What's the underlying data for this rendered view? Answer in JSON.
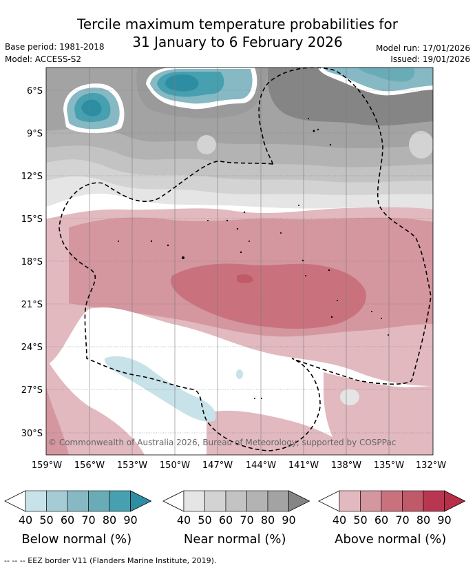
{
  "title_line1": "Tercile maximum temperature probabilities for",
  "title_line2": "31 January to 6 February 2026",
  "base_period": "Base period: 1981-2018",
  "model": "Model: ACCESS-S2",
  "model_run": "Model run: 17/01/2026",
  "issued": "Issued: 19/01/2026",
  "lat_labels": [
    "6°S",
    "9°S",
    "12°S",
    "15°S",
    "18°S",
    "21°S",
    "24°S",
    "27°S",
    "30°S"
  ],
  "lon_labels": [
    "159°W",
    "156°W",
    "153°W",
    "150°W",
    "147°W",
    "144°W",
    "141°W",
    "138°W",
    "135°W",
    "132°W"
  ],
  "copyright": "© Commonwealth of Australia 2026, Bureau of Meteorology, supported by COSPPac",
  "colorbars": [
    {
      "title": "Below normal (%)",
      "ticks": [
        "40",
        "50",
        "60",
        "70",
        "80",
        "90"
      ],
      "colors": [
        "#ffffff",
        "#c8e2e9",
        "#a5ccd5",
        "#86b9c4",
        "#69acb8",
        "#46a0b0",
        "#2d8ea3"
      ]
    },
    {
      "title": "Near normal (%)",
      "ticks": [
        "40",
        "50",
        "60",
        "70",
        "80",
        "90"
      ],
      "colors": [
        "#ffffff",
        "#e5e5e5",
        "#d3d3d3",
        "#c3c3c3",
        "#b3b3b3",
        "#a3a3a3",
        "#858585"
      ]
    },
    {
      "title": "Above normal (%)",
      "ticks": [
        "40",
        "50",
        "60",
        "70",
        "80",
        "90"
      ],
      "colors": [
        "#ffffff",
        "#e1b9bf",
        "#d4969f",
        "#c9727e",
        "#c05a69",
        "#b93650",
        "#b82e48"
      ]
    }
  ],
  "eez_note": "--  --  -- EEZ border V11 (Flanders Marine Institute, 2019).",
  "colors": {
    "below_light": "#c8e2e9",
    "below_dark": "#2d8ea3",
    "near_light": "#e5e5e5",
    "near_mid": "#c3c3c3",
    "near_dark": "#858585",
    "above_light": "#e1b9bf",
    "above_mid": "#d4969f",
    "above_dark": "#c9727e"
  }
}
